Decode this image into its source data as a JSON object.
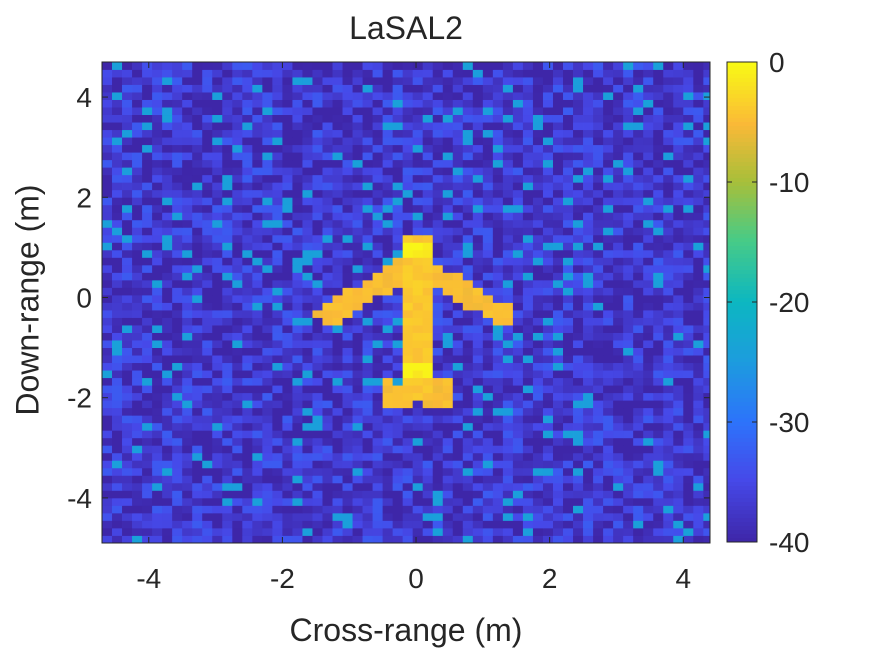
{
  "chart_data": {
    "type": "heatmap",
    "title": "LaSAL2",
    "xlabel": "Cross-range (m)",
    "ylabel": "Down-range (m)",
    "xlim": [
      -4.7,
      4.4
    ],
    "ylim": [
      -4.9,
      4.7
    ],
    "xticks": [
      -4,
      -2,
      0,
      2,
      4
    ],
    "xtick_labels": [
      "-4",
      "-2",
      "0",
      "2",
      "4"
    ],
    "yticks": [
      -4,
      -2,
      0,
      2,
      4
    ],
    "ytick_labels": [
      "-4",
      "-2",
      "0",
      "2",
      "4"
    ],
    "colormap": "parula",
    "colorbar": {
      "range": [
        -40,
        0
      ],
      "ticks": [
        0,
        -10,
        -20,
        -30,
        -40
      ],
      "tick_labels": [
        "0",
        "-10",
        "-20",
        "-30",
        "-40"
      ]
    },
    "grid_resolution_m": 0.15,
    "background_level_db": -37,
    "target": {
      "shape": "airplane",
      "fuselage": {
        "x": [
          -0.18,
          0.18
        ],
        "y": [
          -2.0,
          1.3
        ],
        "value_db": -4
      },
      "nose": {
        "center": [
          0,
          0.95
        ],
        "value_db": -1
      },
      "tail_hot": {
        "center": [
          0,
          -1.45
        ],
        "value_db": -1
      },
      "wings": {
        "root": [
          0,
          0.7
        ],
        "tip_left": [
          -1.3,
          -0.35
        ],
        "tip_right": [
          1.3,
          -0.35
        ],
        "value_db": -5
      },
      "tail_stabilizer": {
        "x": [
          -0.55,
          0.55
        ],
        "y": [
          -2.25,
          -1.65
        ],
        "value_db": -5
      }
    },
    "grid": false
  }
}
